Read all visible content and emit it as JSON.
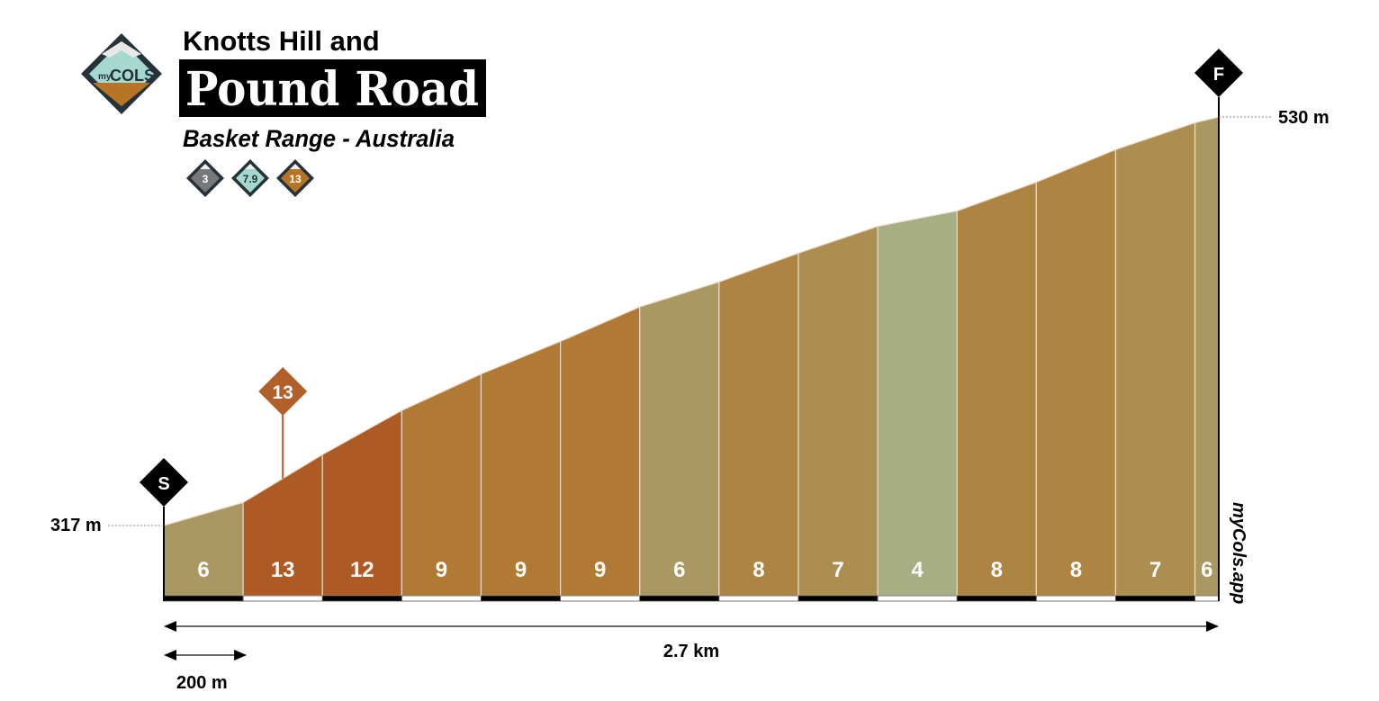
{
  "header": {
    "title_line1": "Knotts Hill and",
    "title_line2": "Pound Road",
    "subtitle": "Basket Range - Australia",
    "logo_text_small": "my",
    "logo_text_big": "COLS",
    "badges": [
      {
        "value": "3",
        "color": "#76787a"
      },
      {
        "value": "7.9",
        "color": "#a5d9cf"
      },
      {
        "value": "13",
        "color": "#b87426"
      }
    ]
  },
  "watermark": "myCols.app",
  "chart_data": {
    "type": "area",
    "x_unit": "m",
    "y_unit": "m",
    "distance": [
      0,
      200,
      400,
      600,
      800,
      1000,
      1200,
      1400,
      1600,
      1800,
      2000,
      2200,
      2400,
      2600,
      2660
    ],
    "elevation": [
      317,
      329,
      354,
      377,
      396,
      413,
      431,
      444,
      459,
      473,
      481,
      496,
      513,
      527,
      530
    ],
    "segment_gradients": [
      6,
      13,
      12,
      9,
      9,
      9,
      6,
      8,
      7,
      4,
      8,
      8,
      7,
      6
    ],
    "gradient_colors": {
      "4": "#a7ae84",
      "6": "#aa9862",
      "7": "#ac8f50",
      "8": "#ad8442",
      "9": "#b07a34",
      "12": "#ad5a24",
      "13": "#ad5a24"
    },
    "start_marker": "S",
    "finish_marker": "F",
    "start_label": "317 m",
    "finish_label": "530 m",
    "max_gradient": {
      "value": "13",
      "distance": 300,
      "color": "#b2602a"
    },
    "total_distance_label": "2.7 km",
    "scale_label": "200 m",
    "scale_distance": 200
  }
}
